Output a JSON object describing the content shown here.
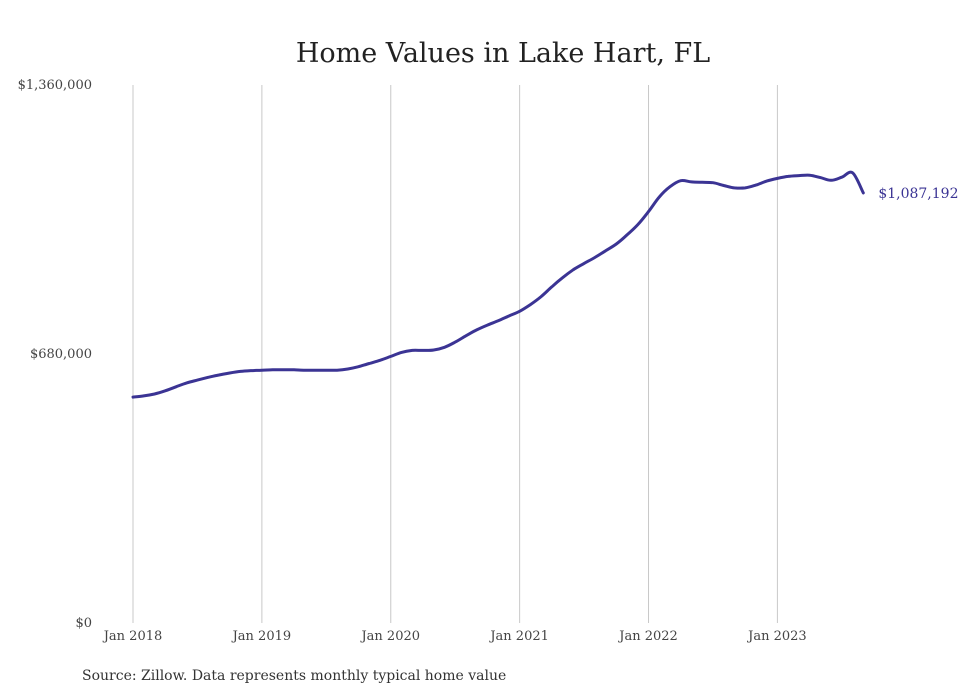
{
  "chart_data": {
    "type": "line",
    "title": "Home Values in Lake Hart, FL",
    "xlabel": "",
    "ylabel": "",
    "ylim": [
      0,
      1360000
    ],
    "yticks": [
      {
        "value": 0,
        "label": "$0"
      },
      {
        "value": 680000,
        "label": "$680,000"
      },
      {
        "value": 1360000,
        "label": "$1,360,000"
      }
    ],
    "xlim": [
      "2018-01",
      "2023-10"
    ],
    "xticks": [
      {
        "date": "2018-01",
        "label": "Jan 2018"
      },
      {
        "date": "2019-01",
        "label": "Jan 2019"
      },
      {
        "date": "2020-01",
        "label": "Jan 2020"
      },
      {
        "date": "2021-01",
        "label": "Jan 2021"
      },
      {
        "date": "2022-01",
        "label": "Jan 2022"
      },
      {
        "date": "2023-01",
        "label": "Jan 2023"
      }
    ],
    "grid": "vertical",
    "legend": "none",
    "series": [
      {
        "color": "#3b3494",
        "end_label": "$1,087,192",
        "x": [
          "2018-01",
          "2018-02",
          "2018-03",
          "2018-04",
          "2018-05",
          "2018-06",
          "2018-07",
          "2018-08",
          "2018-09",
          "2018-10",
          "2018-11",
          "2018-12",
          "2019-01",
          "2019-02",
          "2019-03",
          "2019-04",
          "2019-05",
          "2019-06",
          "2019-07",
          "2019-08",
          "2019-09",
          "2019-10",
          "2019-11",
          "2019-12",
          "2020-01",
          "2020-02",
          "2020-03",
          "2020-04",
          "2020-05",
          "2020-06",
          "2020-07",
          "2020-08",
          "2020-09",
          "2020-10",
          "2020-11",
          "2020-12",
          "2021-01",
          "2021-02",
          "2021-03",
          "2021-04",
          "2021-05",
          "2021-06",
          "2021-07",
          "2021-08",
          "2021-09",
          "2021-10",
          "2021-11",
          "2021-12",
          "2022-01",
          "2022-02",
          "2022-03",
          "2022-04",
          "2022-05",
          "2022-06",
          "2022-07",
          "2022-08",
          "2022-09",
          "2022-10",
          "2022-11",
          "2022-12",
          "2023-01",
          "2023-02",
          "2023-03",
          "2023-04",
          "2023-05",
          "2023-06",
          "2023-07",
          "2023-08",
          "2023-09"
        ],
        "values": [
          571000,
          574000,
          579000,
          587000,
          597000,
          607000,
          614000,
          621000,
          627000,
          632000,
          636000,
          638000,
          639000,
          640000,
          640000,
          640000,
          639000,
          639000,
          639000,
          639000,
          642000,
          648000,
          656000,
          664000,
          674000,
          684000,
          689000,
          689000,
          690000,
          697000,
          710000,
          726000,
          741000,
          753000,
          764000,
          776000,
          788000,
          805000,
          825000,
          850000,
          873000,
          893000,
          909000,
          924000,
          941000,
          958000,
          981000,
          1007000,
          1040000,
          1077000,
          1103000,
          1118000,
          1115000,
          1114000,
          1113000,
          1106000,
          1100000,
          1100000,
          1107000,
          1117000,
          1124000,
          1129000,
          1131000,
          1132000,
          1126000,
          1119000,
          1127000,
          1138000,
          1087192
        ]
      }
    ],
    "source": "Source: Zillow. Data represents monthly typical home value"
  }
}
